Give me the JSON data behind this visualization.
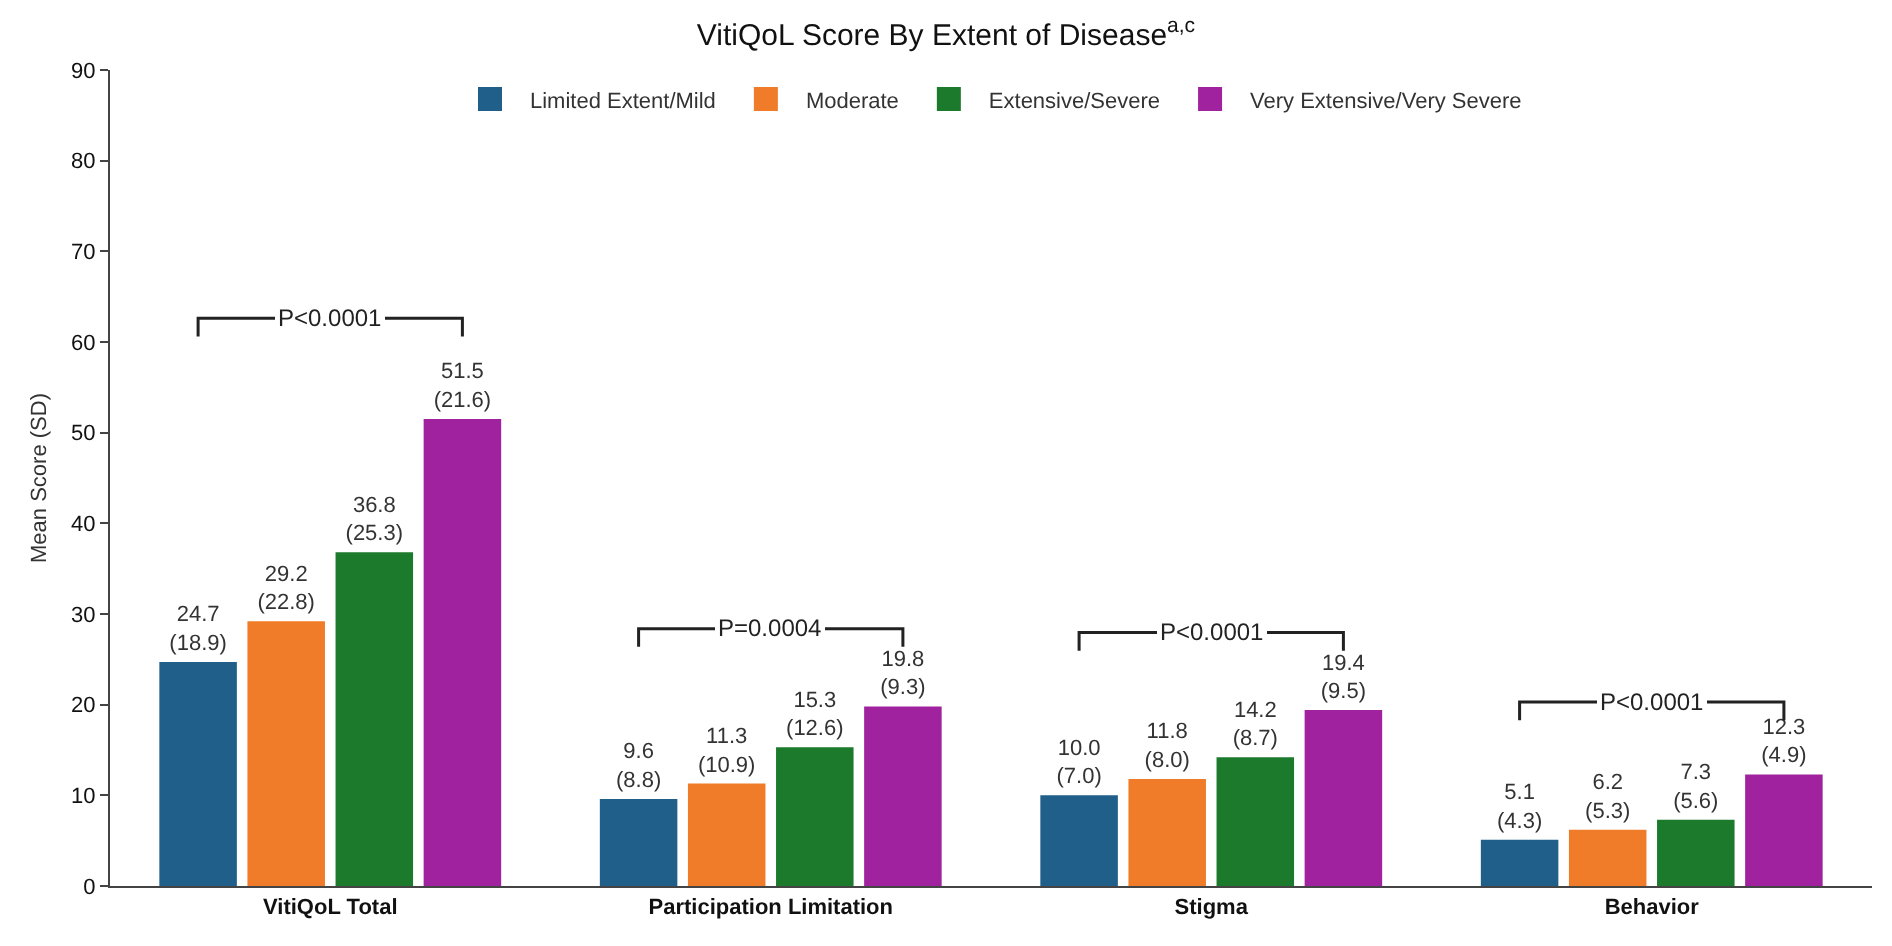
{
  "chart_data": {
    "type": "bar",
    "title": "VitiQoL Score By Extent of Disease$^{a,c}$",
    "ylabel": "Mean Score (SD)",
    "categories": [
      "VitiQoL Total",
      "Participation Limitation",
      "Stigma",
      "Behavior"
    ],
    "series": [
      {
        "name": "Limited Extent/Mild",
        "color": "#1f5f8a",
        "values": [
          24.7,
          9.6,
          10.0,
          5.1
        ],
        "value_labels": [
          "24.7\n(18.9)",
          "9.6\n(8.8)",
          "10.0\n(7.0)",
          "5.1\n(4.3)"
        ]
      },
      {
        "name": "Moderate",
        "color": "#f07c2a",
        "values": [
          29.2,
          11.3,
          11.8,
          6.2
        ],
        "value_labels": [
          "29.2\n(22.8)",
          "11.3\n(10.9)",
          "11.8\n(8.0)",
          "6.2\n(5.3)"
        ]
      },
      {
        "name": "Extensive/Severe",
        "color": "#1c7a2c",
        "values": [
          36.8,
          15.3,
          14.2,
          7.3
        ],
        "value_labels": [
          "36.8\n(25.3)",
          "15.3\n(12.6)",
          "14.2\n(8.7)",
          "7.3\n(5.6)"
        ]
      },
      {
        "name": "Very Extensive/Very Severe",
        "color": "#a1229e",
        "values": [
          51.5,
          19.8,
          19.4,
          12.3
        ],
        "value_labels": [
          "51.5\n(21.6)",
          "19.8\n(9.3)",
          "19.4\n(9.5)",
          "12.3\n(4.9)"
        ]
      }
    ],
    "ylim": [
      0,
      90
    ],
    "yticks": [
      0,
      10,
      20,
      30,
      40,
      50,
      60,
      70,
      80,
      90
    ],
    "grid": false,
    "legend": "top",
    "annotations": [
      "P<0.0001",
      "P=0.0004",
      "P<0.0001",
      "P<0.0001"
    ]
  }
}
